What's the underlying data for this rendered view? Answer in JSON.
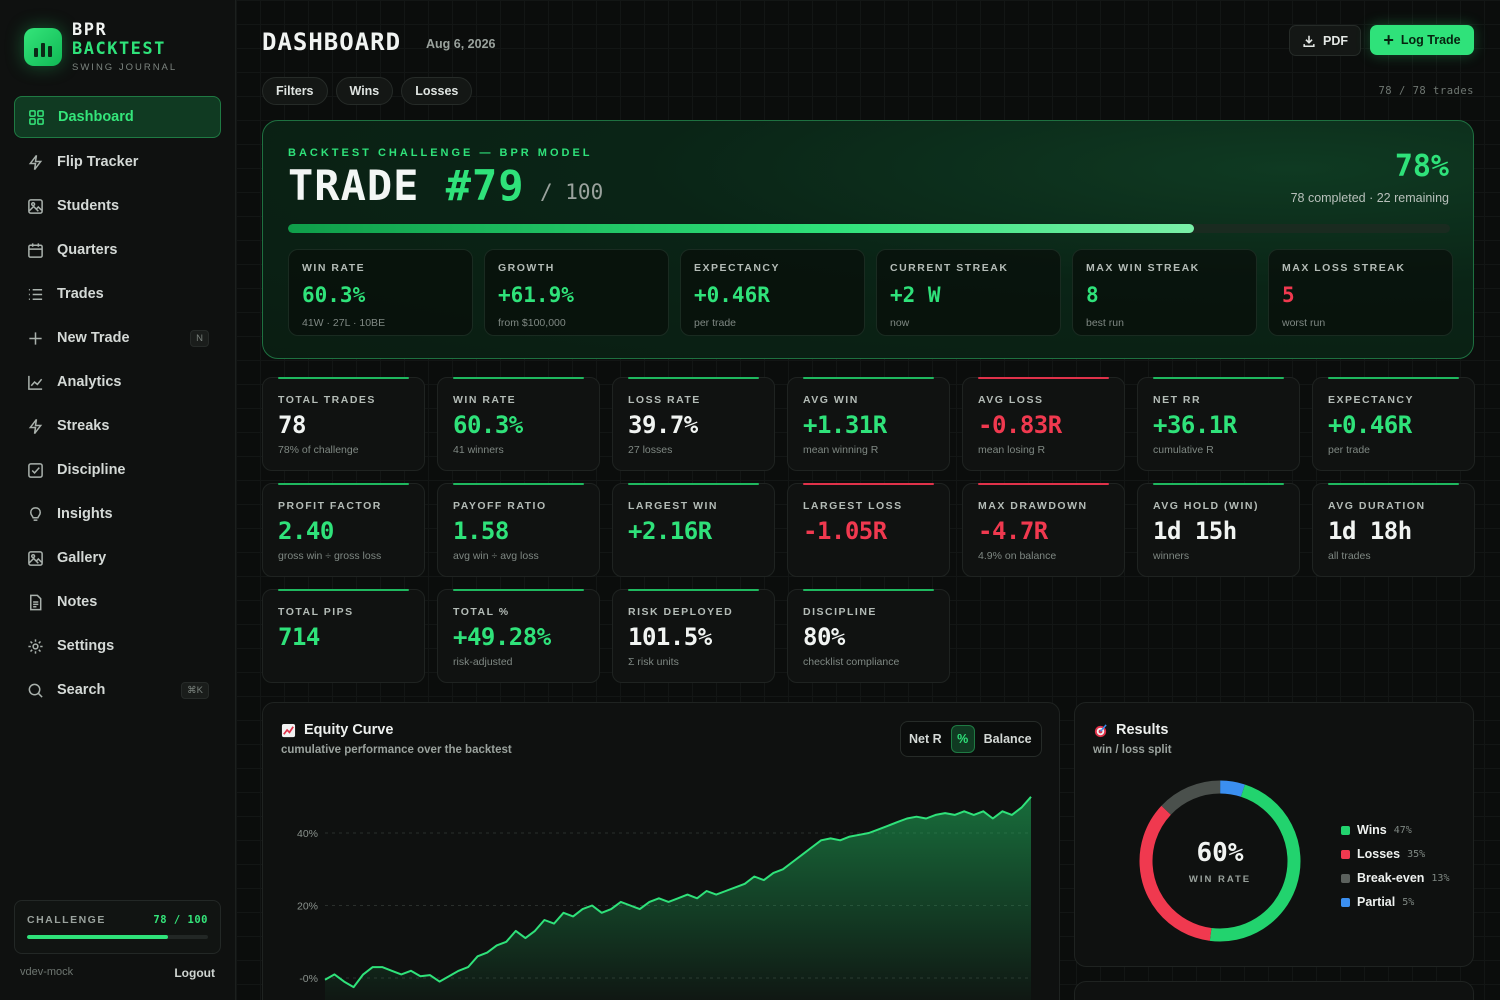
{
  "brand": {
    "line1": "BPR",
    "line2": "BACKTEST",
    "tagline": "SWING JOURNAL"
  },
  "sidebar": {
    "items": [
      {
        "label": "Dashboard",
        "icon": "grid-icon",
        "active": true
      },
      {
        "label": "Flip Tracker",
        "icon": "bolt-icon"
      },
      {
        "label": "Students",
        "icon": "image-icon"
      },
      {
        "label": "Quarters",
        "icon": "calendar-icon"
      },
      {
        "label": "Trades",
        "icon": "list-icon"
      },
      {
        "label": "New Trade",
        "icon": "plus-icon",
        "kbd": "N"
      },
      {
        "label": "Analytics",
        "icon": "line-chart-icon"
      },
      {
        "label": "Streaks",
        "icon": "bolt-icon"
      },
      {
        "label": "Discipline",
        "icon": "checkbox-icon"
      },
      {
        "label": "Insights",
        "icon": "lightbulb-icon"
      },
      {
        "label": "Gallery",
        "icon": "image-icon"
      },
      {
        "label": "Notes",
        "icon": "document-icon"
      },
      {
        "label": "Settings",
        "icon": "gear-icon"
      },
      {
        "label": "Search",
        "icon": "search-icon",
        "kbd": "⌘K"
      }
    ],
    "challenge": {
      "label": "CHALLENGE",
      "value": "78 / 100",
      "progress": 0.78
    },
    "user": "vdev-mock",
    "logout": "Logout"
  },
  "header": {
    "title": "DASHBOARD",
    "date": "Aug 6, 2026",
    "pdf_label": "PDF",
    "log_trade_label": "Log Trade",
    "filters": [
      "Filters",
      "Wins",
      "Losses"
    ],
    "trade_count": "78 / 78 trades"
  },
  "hero": {
    "kicker": "BACKTEST CHALLENGE — BPR MODEL",
    "title_prefix": "TRADE ",
    "title_num": "#79",
    "of": "/ 100",
    "percent": "78%",
    "sub": "78 completed · 22 remaining",
    "progress": 0.78,
    "stats": [
      {
        "label": "WIN RATE",
        "value": "60.3%",
        "sub": "41W · 27L · 10BE",
        "color": "green"
      },
      {
        "label": "GROWTH",
        "value": "+61.9%",
        "sub": "from $100,000",
        "color": "green"
      },
      {
        "label": "EXPECTANCY",
        "value": "+0.46R",
        "sub": "per trade",
        "color": "green"
      },
      {
        "label": "CURRENT STREAK",
        "value": "+2 W",
        "sub": "now",
        "color": "green"
      },
      {
        "label": "MAX WIN STREAK",
        "value": "8",
        "sub": "best run",
        "color": "green"
      },
      {
        "label": "MAX LOSS STREAK",
        "value": "5",
        "sub": "worst run",
        "color": "red"
      }
    ]
  },
  "metrics": [
    {
      "label": "TOTAL TRADES",
      "value": "78",
      "sub": "78% of challenge",
      "color": "white",
      "accent": "green"
    },
    {
      "label": "WIN RATE",
      "value": "60.3%",
      "sub": "41 winners",
      "color": "green",
      "accent": "green"
    },
    {
      "label": "LOSS RATE",
      "value": "39.7%",
      "sub": "27 losses",
      "color": "white",
      "accent": "green"
    },
    {
      "label": "AVG WIN",
      "value": "+1.31R",
      "sub": "mean winning R",
      "color": "green",
      "accent": "green"
    },
    {
      "label": "AVG LOSS",
      "value": "-0.83R",
      "sub": "mean losing R",
      "color": "red",
      "accent": "red"
    },
    {
      "label": "NET RR",
      "value": "+36.1R",
      "sub": "cumulative R",
      "color": "green",
      "accent": "green"
    },
    {
      "label": "EXPECTANCY",
      "value": "+0.46R",
      "sub": "per trade",
      "color": "green",
      "accent": "green"
    },
    {
      "label": "PROFIT FACTOR",
      "value": "2.40",
      "sub": "gross win ÷ gross loss",
      "color": "green",
      "accent": "green"
    },
    {
      "label": "PAYOFF RATIO",
      "value": "1.58",
      "sub": "avg win ÷ avg loss",
      "color": "green",
      "accent": "green"
    },
    {
      "label": "LARGEST WIN",
      "value": "+2.16R",
      "sub": "",
      "color": "green",
      "accent": "green"
    },
    {
      "label": "LARGEST LOSS",
      "value": "-1.05R",
      "sub": "",
      "color": "red",
      "accent": "red"
    },
    {
      "label": "MAX DRAWDOWN",
      "value": "-4.7R",
      "sub": "4.9% on balance",
      "color": "red",
      "accent": "red"
    },
    {
      "label": "AVG HOLD (WIN)",
      "value": "1d 15h",
      "sub": "winners",
      "color": "white",
      "accent": "green"
    },
    {
      "label": "AVG DURATION",
      "value": "1d 18h",
      "sub": "all trades",
      "color": "white",
      "accent": "green"
    },
    {
      "label": "TOTAL PIPS",
      "value": "714",
      "sub": "",
      "color": "green",
      "accent": "green"
    },
    {
      "label": "TOTAL %",
      "value": "+49.28%",
      "sub": "risk-adjusted",
      "color": "green",
      "accent": "green"
    },
    {
      "label": "RISK DEPLOYED",
      "value": "101.5%",
      "sub": "Σ risk units",
      "color": "white",
      "accent": "green"
    },
    {
      "label": "DISCIPLINE",
      "value": "80%",
      "sub": "checklist compliance",
      "color": "white",
      "accent": "green"
    }
  ],
  "equity": {
    "title": "Equity Curve",
    "subtitle": "cumulative performance over the backtest",
    "toggle": [
      "Net R",
      "%",
      "Balance"
    ],
    "toggle_selected": "%"
  },
  "results": {
    "title": "Results",
    "subtitle": "win / loss split",
    "center_value": "60%",
    "center_label": "WIN RATE",
    "legend": [
      {
        "label": "Wins",
        "pct": "47%",
        "color": "#22d36e"
      },
      {
        "label": "Losses",
        "pct": "35%",
        "color": "#f0394f"
      },
      {
        "label": "Break-even",
        "pct": "13%",
        "color": "#5b615d"
      },
      {
        "label": "Partial",
        "pct": "5%",
        "color": "#3b8ff0"
      }
    ]
  },
  "chart_data": {
    "type": "area",
    "title": "Equity Curve",
    "ylabel": "",
    "xlabel": "",
    "yticks": [
      "40%",
      "20%",
      "-0%"
    ],
    "ylim": [
      -2,
      50
    ],
    "grid": true,
    "series": [
      {
        "values": [
          -0.5,
          1,
          -1,
          -2.5,
          1,
          3,
          3,
          2,
          1,
          2,
          0.5,
          0.8,
          -1,
          0.5,
          2,
          3,
          6,
          7,
          9,
          10,
          13,
          11,
          13,
          16,
          15,
          18,
          17,
          19,
          20,
          18,
          19,
          21,
          20,
          19,
          21,
          22,
          21,
          22,
          23,
          22,
          24,
          23,
          24,
          25,
          26,
          28,
          27,
          29,
          30,
          32,
          34,
          36,
          38,
          38.5,
          38,
          39,
          39.5,
          40,
          41,
          42,
          43,
          44,
          44.5,
          44,
          45,
          45.5,
          45,
          46,
          45,
          46,
          44,
          46,
          45,
          47,
          50
        ]
      }
    ]
  }
}
